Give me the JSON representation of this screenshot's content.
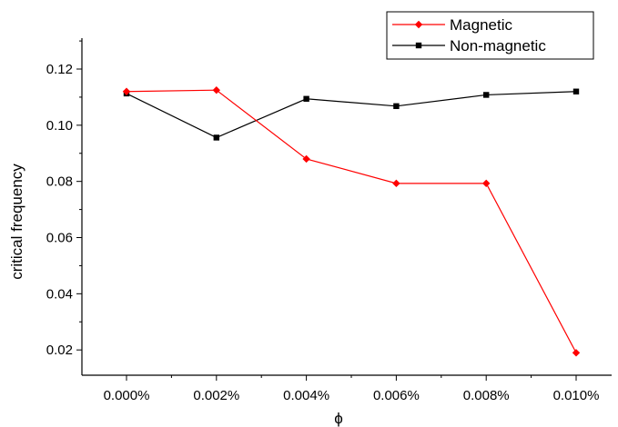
{
  "chart_data": {
    "type": "line",
    "title": "",
    "xlabel": "ϕ",
    "ylabel": "critical frequency",
    "categories": [
      "0.000%",
      "0.002%",
      "0.004%",
      "0.006%",
      "0.008%",
      "0.010%"
    ],
    "ylim": [
      0.011,
      0.131
    ],
    "yticks": [
      0.02,
      0.04,
      0.06,
      0.08,
      0.1,
      0.12
    ],
    "ytick_labels": [
      "0.02",
      "0.04",
      "0.06",
      "0.08",
      "0.10",
      "0.12"
    ],
    "grid": false,
    "legend_position": "top-right",
    "series": [
      {
        "name": "Magnetic",
        "color": "#ff0000",
        "marker": "diamond",
        "values": [
          0.112,
          0.1125,
          0.088,
          0.0793,
          0.0793,
          0.019
        ]
      },
      {
        "name": "Non-magnetic",
        "color": "#000000",
        "marker": "square",
        "values": [
          0.1113,
          0.0956,
          0.1094,
          0.1068,
          0.1108,
          0.112
        ]
      }
    ]
  }
}
